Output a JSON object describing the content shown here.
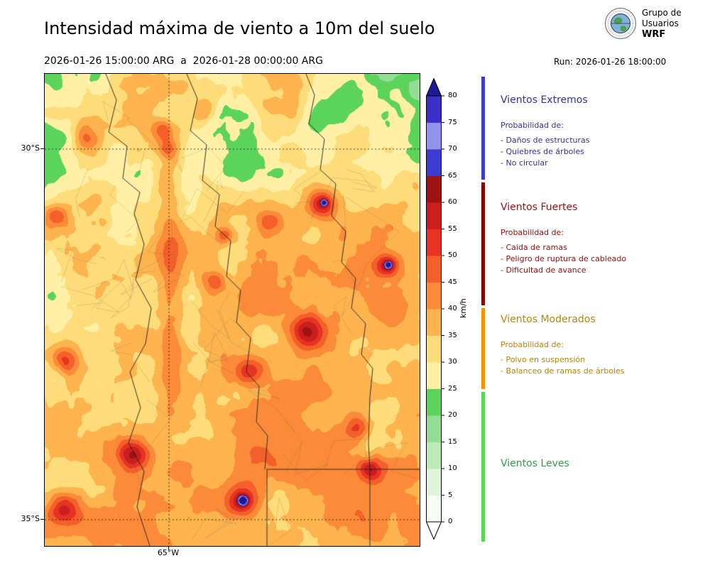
{
  "header": {
    "title": "Intensidad máxima de viento a 10m del suelo",
    "date_range": "2026-01-26 15:00:00 ARG  a  2026-01-28 00:00:00 ARG",
    "run_label": "Run: 2026-01-26 18:00:00"
  },
  "logo": {
    "line1": "Grupo de",
    "line2": "Usuarios",
    "line3": "WRF"
  },
  "map": {
    "ytick_labels": [
      "30°S",
      "35°S"
    ],
    "xtick_labels": [
      "65°W"
    ]
  },
  "colorbar": {
    "unit": "km/h",
    "tick_values": [
      0,
      5,
      10,
      15,
      20,
      25,
      30,
      35,
      40,
      45,
      50,
      55,
      60,
      65,
      70,
      75,
      80
    ],
    "segment_colors_bottom_to_top": [
      "#f7fcf4",
      "#dff4da",
      "#bfeab8",
      "#94dd94",
      "#5cd45c",
      "#fff0a6",
      "#fedc7a",
      "#fdb44e",
      "#fb8b38",
      "#f4602a",
      "#e63323",
      "#cb1e1e",
      "#9e1212",
      "#3c3cd1",
      "#9393ef",
      "#3b2fc8"
    ],
    "over_color": "#1b1b93",
    "under_color": "#ffffff"
  },
  "legend": {
    "sections": [
      {
        "title": "Vientos Extremos",
        "text_color": "#333399",
        "bar_color": "#3b3bce",
        "items": [
          "Probabilidad de:",
          "- Daños de estructuras",
          "- Quiebres de árboles",
          "- No circular"
        ]
      },
      {
        "title": "Vientos Fuertes",
        "text_color": "#a01010",
        "bar_color": "#8b0000",
        "items": [
          "Probabilidad de:",
          "- Caida de ramas",
          "- Peligro de ruptura de cableado",
          "- Dificultad de avance"
        ]
      },
      {
        "title": "Vientos Moderados",
        "text_color": "#b8860b",
        "bar_color": "#ff9100",
        "items": [
          "Probabilidad de:",
          "- Polvo en suspensión",
          "- Balanceo de ramas de árboles"
        ]
      },
      {
        "title": "Vientos Leves",
        "text_color": "#2f9e44",
        "bar_color": "#55d855",
        "items": []
      }
    ]
  }
}
